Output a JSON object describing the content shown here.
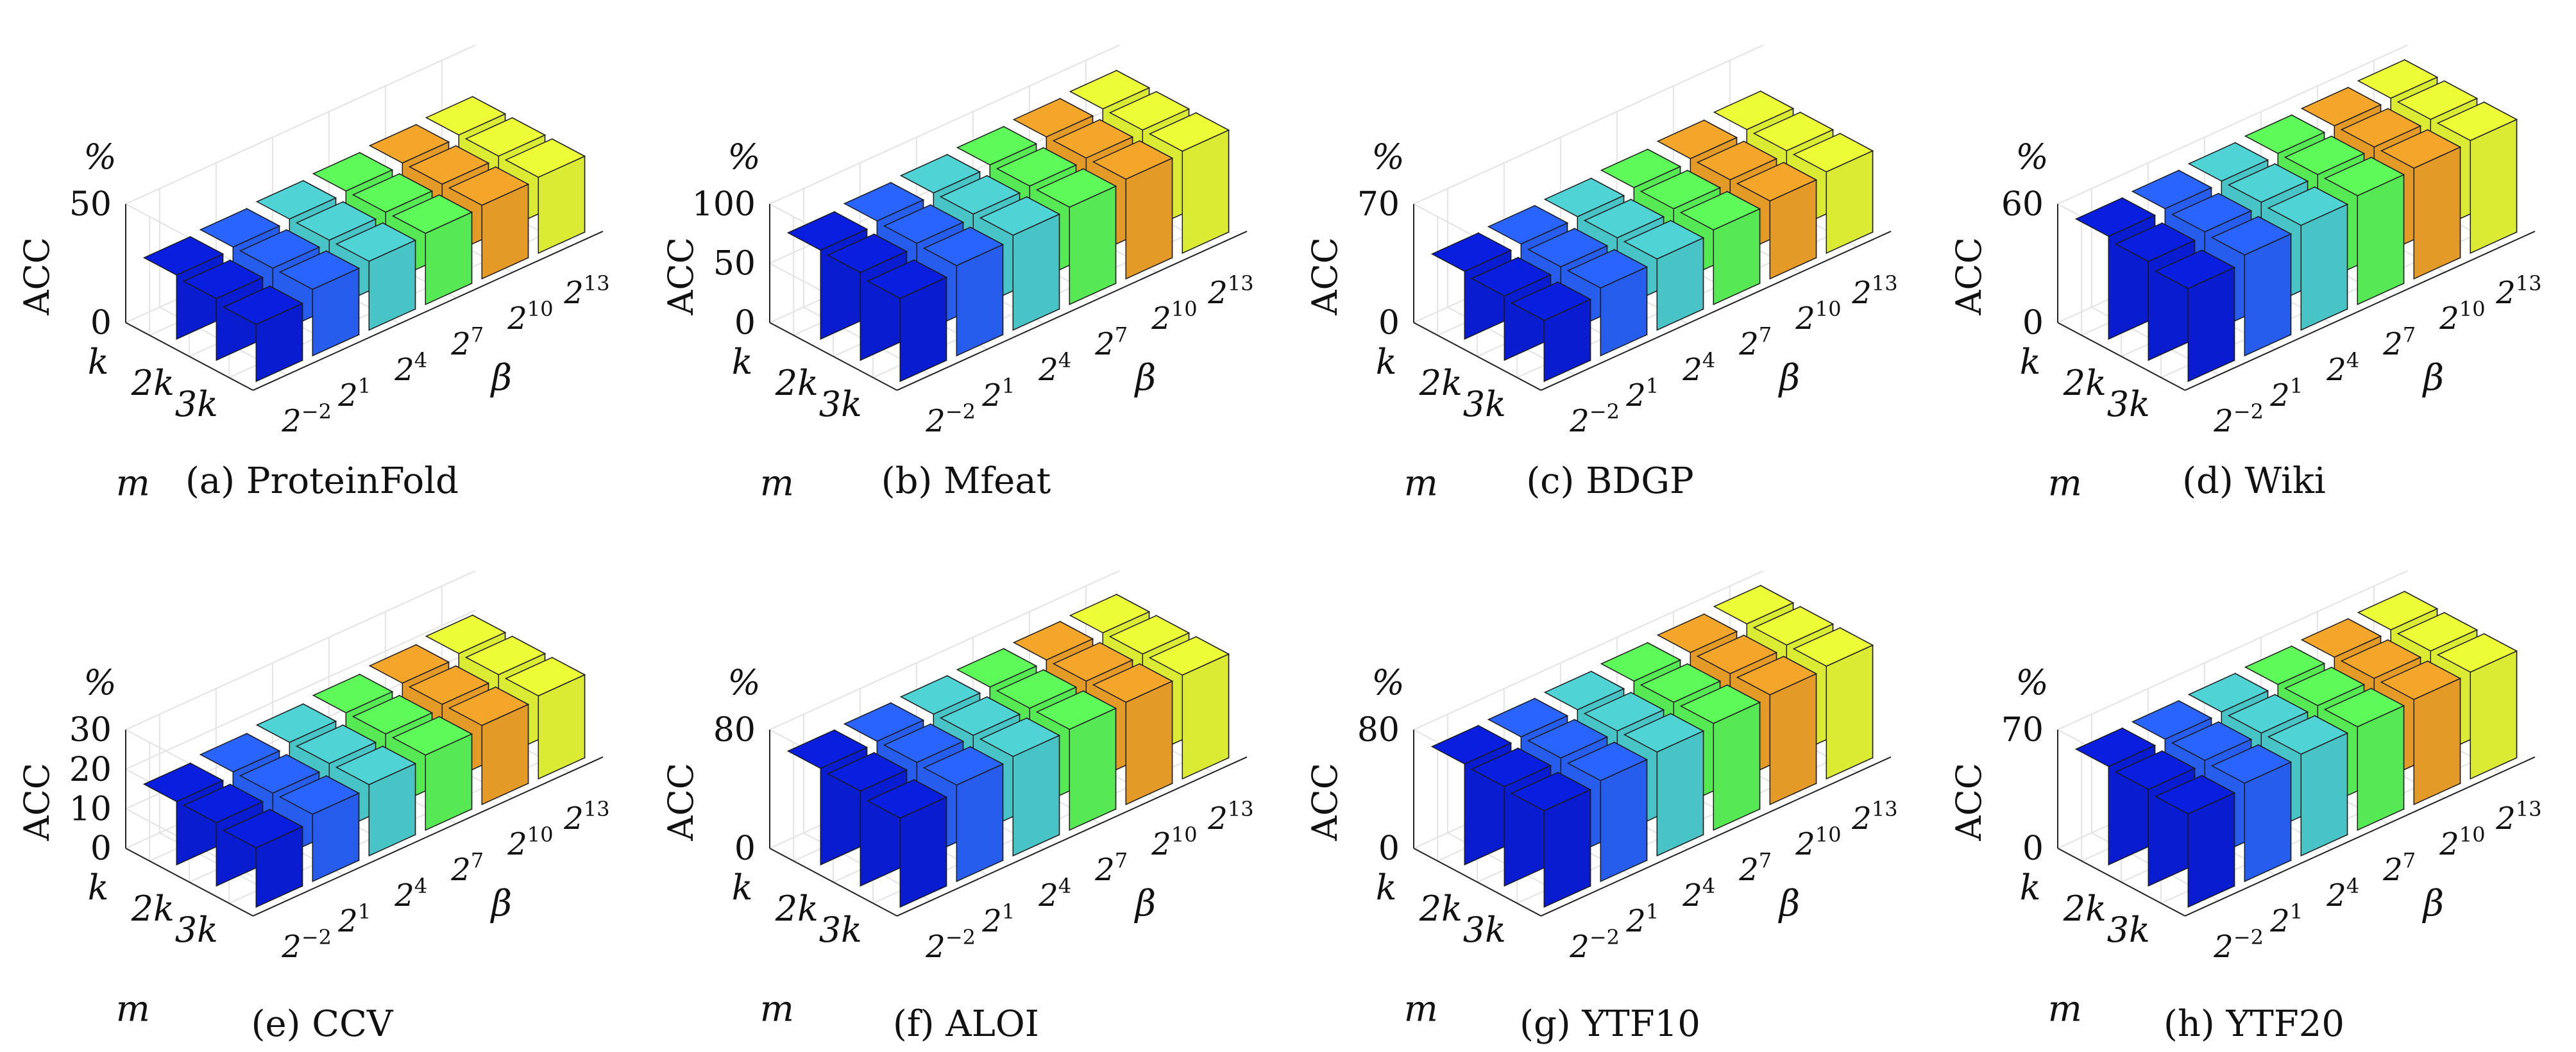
{
  "axes_text": {
    "ylabel": "ACC",
    "unit": "%",
    "m_label": "m",
    "beta_label": "β",
    "m_ticks": [
      {
        "b": "k",
        "e": ""
      },
      {
        "b": "2k",
        "e": ""
      },
      {
        "b": "3k",
        "e": ""
      }
    ],
    "beta_ticks": [
      {
        "b": "2",
        "e": "−2"
      },
      {
        "b": "2",
        "e": "1"
      },
      {
        "b": "2",
        "e": "4"
      },
      {
        "b": "2",
        "e": "7"
      },
      {
        "b": "2",
        "e": "10"
      },
      {
        "b": "2",
        "e": "13"
      }
    ]
  },
  "colors": [
    "#0a1ee0",
    "#2a64ff",
    "#4fd3d5",
    "#5dfa5a",
    "#f4a62a",
    "#ecfd37"
  ],
  "chart_data": [
    {
      "type": "bar3d",
      "caption": "(a) ProteinFold",
      "zlim": [
        0,
        50
      ],
      "zticks": [
        0,
        50
      ],
      "m": [
        "k",
        "2k",
        "3k"
      ],
      "beta": [
        "2^-2",
        "2^1",
        "2^4",
        "2^7",
        "2^10",
        "2^13"
      ],
      "values": [
        [
          27,
          28,
          29,
          30,
          31,
          32
        ],
        [
          26,
          28,
          29,
          30,
          31,
          32
        ],
        [
          24,
          28,
          29,
          30,
          31,
          32
        ]
      ]
    },
    {
      "type": "bar3d",
      "caption": "(b) Mfeat",
      "zlim": [
        0,
        100
      ],
      "zticks": [
        0,
        50,
        100
      ],
      "m": [
        "k",
        "2k",
        "3k"
      ],
      "beta": [
        "2^-2",
        "2^1",
        "2^4",
        "2^7",
        "2^10",
        "2^13"
      ],
      "values": [
        [
          75,
          78,
          80,
          82,
          84,
          86
        ],
        [
          74,
          77,
          80,
          82,
          84,
          86
        ],
        [
          70,
          76,
          80,
          82,
          84,
          86
        ]
      ]
    },
    {
      "type": "bar3d",
      "caption": "(c) BDGP",
      "zlim": [
        0,
        70
      ],
      "zticks": [
        0,
        70
      ],
      "m": [
        "k",
        "2k",
        "3k"
      ],
      "beta": [
        "2^-2",
        "2^1",
        "2^4",
        "2^7",
        "2^10",
        "2^13"
      ],
      "values": [
        [
          40,
          41,
          42,
          44,
          46,
          48
        ],
        [
          38,
          40,
          42,
          44,
          46,
          48
        ],
        [
          36,
          40,
          42,
          44,
          46,
          48
        ]
      ]
    },
    {
      "type": "bar3d",
      "caption": "(d) Wiki",
      "zlim": [
        0,
        60
      ],
      "zticks": [
        0,
        60
      ],
      "m": [
        "k",
        "2k",
        "3k"
      ],
      "beta": [
        "2^-2",
        "2^1",
        "2^4",
        "2^7",
        "2^10",
        "2^13"
      ],
      "values": [
        [
          52,
          53,
          54,
          55,
          56,
          57
        ],
        [
          50,
          52,
          54,
          55,
          56,
          57
        ],
        [
          47,
          51,
          53,
          55,
          56,
          57
        ]
      ]
    },
    {
      "type": "bar3d",
      "caption": "(e) CCV",
      "zlim": [
        0,
        30
      ],
      "zticks": [
        0,
        10,
        20,
        30
      ],
      "m": [
        "k",
        "2k",
        "3k"
      ],
      "beta": [
        "2^-2",
        "2^1",
        "2^4",
        "2^7",
        "2^10",
        "2^13"
      ],
      "values": [
        [
          16,
          17,
          18,
          19,
          20,
          21
        ],
        [
          16,
          17,
          18,
          19,
          20,
          21
        ],
        [
          15,
          17,
          18,
          19,
          20,
          21
        ]
      ]
    },
    {
      "type": "bar3d",
      "caption": "(f) ALOI",
      "zlim": [
        0,
        80
      ],
      "zticks": [
        0,
        80
      ],
      "m": [
        "k",
        "2k",
        "3k"
      ],
      "beta": [
        "2^-2",
        "2^1",
        "2^4",
        "2^7",
        "2^10",
        "2^13"
      ],
      "values": [
        [
          65,
          66,
          67,
          68,
          69,
          70
        ],
        [
          64,
          66,
          67,
          68,
          69,
          70
        ],
        [
          60,
          65,
          67,
          68,
          69,
          70
        ]
      ]
    },
    {
      "type": "bar3d",
      "caption": "(g) YTF10",
      "zlim": [
        0,
        80
      ],
      "zticks": [
        0,
        80
      ],
      "m": [
        "k",
        "2k",
        "3k"
      ],
      "beta": [
        "2^-2",
        "2^1",
        "2^4",
        "2^7",
        "2^10",
        "2^13"
      ],
      "values": [
        [
          68,
          69,
          70,
          72,
          74,
          76
        ],
        [
          67,
          69,
          70,
          72,
          74,
          76
        ],
        [
          65,
          68,
          70,
          72,
          74,
          76
        ]
      ]
    },
    {
      "type": "bar3d",
      "caption": "(h) YTF20",
      "zlim": [
        0,
        70
      ],
      "zticks": [
        0,
        70
      ],
      "m": [
        "k",
        "2k",
        "3k"
      ],
      "beta": [
        "2^-2",
        "2^1",
        "2^4",
        "2^7",
        "2^10",
        "2^13"
      ],
      "values": [
        [
          58,
          59,
          60,
          61,
          62,
          63
        ],
        [
          57,
          59,
          60,
          61,
          62,
          63
        ],
        [
          55,
          58,
          60,
          61,
          62,
          63
        ]
      ]
    }
  ]
}
